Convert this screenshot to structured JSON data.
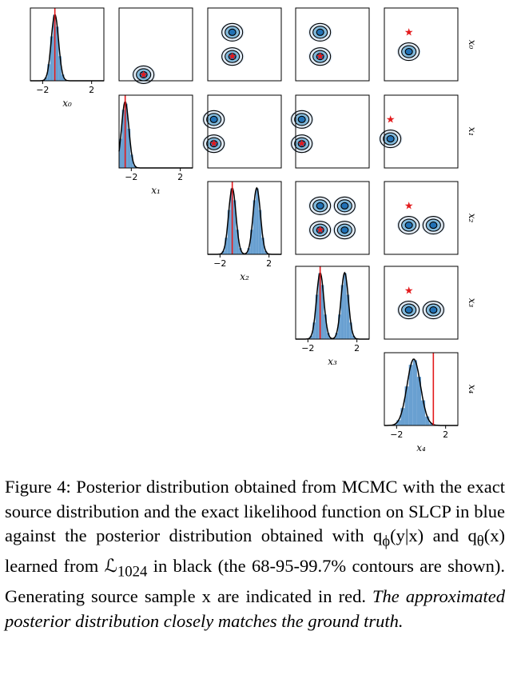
{
  "chart_data": {
    "type": "corner",
    "variables": [
      "x0",
      "x1",
      "x2",
      "x3",
      "x4"
    ],
    "axis_labels": [
      "x₀",
      "x₁",
      "x₂",
      "x₃",
      "x₄"
    ],
    "xlim": [
      -3,
      3
    ],
    "ticks": [
      -2,
      2
    ],
    "tick_labels": [
      "−2",
      "2"
    ],
    "true_values": [
      -1.0,
      -2.5,
      -1.0,
      -1.0,
      1.0
    ],
    "marginal_modes": [
      [
        -1.0
      ],
      [
        -2.5
      ],
      [
        -1.0,
        1.0
      ],
      [
        -1.0,
        1.0
      ],
      [
        -0.6
      ]
    ],
    "colors": {
      "mcmc": "#4f8fc9",
      "approx": "#000000",
      "truth": "#e31a1c"
    }
  },
  "caption": {
    "lead": "Figure 4: Posterior distribution obtained from MCMC with the exact source distribution and the exact likelihood function on SLCP in blue against the posterior distribution obtained with q",
    "q1_sub": "ϕ",
    "q1_args": "(y|x) and q",
    "q2_sub": "θ",
    "q2_args": "(x) learned from ℒ",
    "l_sub": "1024",
    "mid": " in black (the 68-95-99.7% contours are shown). Generating source sample x are indicated in red. ",
    "emph": "The approximated posterior distribution closely matches the ground truth."
  }
}
